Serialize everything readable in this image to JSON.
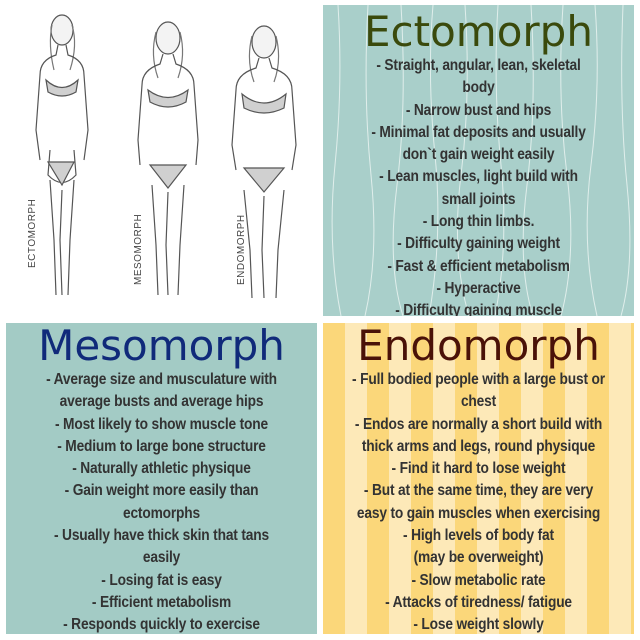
{
  "figures": {
    "labels": [
      "ECTOMORPH",
      "MESOMORPH",
      "ENDOMORPH"
    ]
  },
  "ectomorph": {
    "title": "Ectomorph",
    "lines": [
      "- Straight, angular, lean, skeletal",
      "body",
      "- Narrow bust and hips",
      "- Minimal fat deposits and usually",
      "don`t gain weight easily",
      "- Lean muscles, light build with",
      "small joints",
      "- Long thin limbs.",
      "- Difficulty gaining weight",
      "- Fast & efficient metabolism",
      "- Hyperactive",
      "- Difficulty gaining muscle"
    ]
  },
  "mesomorph": {
    "title": "Mesomorph",
    "lines": [
      "- Average size and musculature with",
      "average busts and average hips",
      "- Most likely to show muscle tone",
      "- Medium to large bone structure",
      "-  Naturally athletic physique",
      "- Gain weight more easily than",
      "ectomorphs",
      "- Usually have thick skin that tans",
      "easily",
      "- Losing fat is easy",
      "- Efficient metabolism",
      "- Responds quickly to exercise"
    ]
  },
  "endomorph": {
    "title": "Endomorph",
    "lines": [
      "- Full bodied people with a large bust or",
      "chest",
      "- Endos are normally a short build with",
      "thick arms and legs, round physique",
      "- Find it hard to lose weight",
      "- But at the same time, they are very",
      "easy to gain muscles when exercising",
      "- High levels of body fat",
      "(may be overweight)",
      "- Slow metabolic rate",
      "- Attacks of tiredness/ fatigue",
      "- Lose weight slowly"
    ]
  },
  "colors": {
    "ecto_bg": "#a9cfca",
    "meso_bg": "#a3cbc5",
    "endo_stripe_dark": "#fbd77a",
    "endo_stripe_light": "#fde9b8",
    "ecto_title": "#3a4a0c",
    "meso_title": "#102a7a",
    "endo_title": "#4a1208",
    "body_text": "#333333"
  }
}
